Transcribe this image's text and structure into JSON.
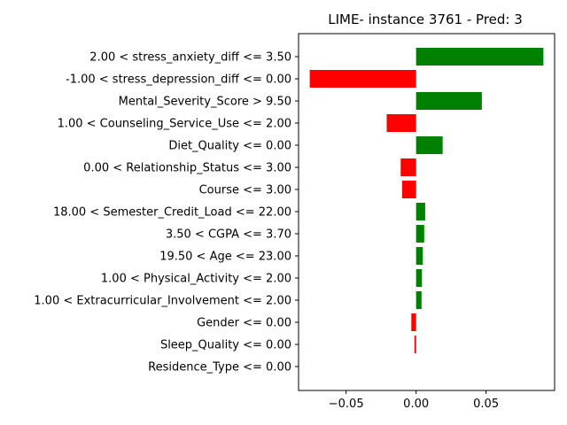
{
  "chart_data": {
    "type": "bar",
    "orientation": "horizontal",
    "title": "LIME- instance 3761 - Pred: 3",
    "xlabel": "",
    "ylabel": "",
    "xlim": [
      -0.084,
      0.099
    ],
    "xticks": [
      -0.05,
      0.0,
      0.05
    ],
    "xtick_labels": [
      "−0.05",
      "0.00",
      "0.05"
    ],
    "grid": false,
    "positive_color": "#008000",
    "negative_color": "#ff0000",
    "categories": [
      "2.00 < stress_anxiety_diff <= 3.50",
      "-1.00 < stress_depression_diff <= 0.00",
      "Mental_Severity_Score > 9.50",
      "1.00 < Counseling_Service_Use <= 2.00",
      "Diet_Quality <= 0.00",
      "0.00 < Relationship_Status <= 3.00",
      "Course <= 3.00",
      "18.00 < Semester_Credit_Load <= 22.00",
      "3.50 < CGPA <= 3.70",
      "19.50 < Age <= 23.00",
      "1.00 < Physical_Activity <= 2.00",
      "1.00 < Extracurricular_Involvement <= 2.00",
      "Gender <= 0.00",
      "Sleep_Quality <= 0.00",
      "Residence_Type <= 0.00"
    ],
    "values": [
      0.091,
      -0.076,
      0.047,
      -0.021,
      0.019,
      -0.011,
      -0.01,
      0.0065,
      0.0058,
      0.0048,
      0.0042,
      0.0039,
      -0.0034,
      -0.0012,
      0.0
    ]
  }
}
